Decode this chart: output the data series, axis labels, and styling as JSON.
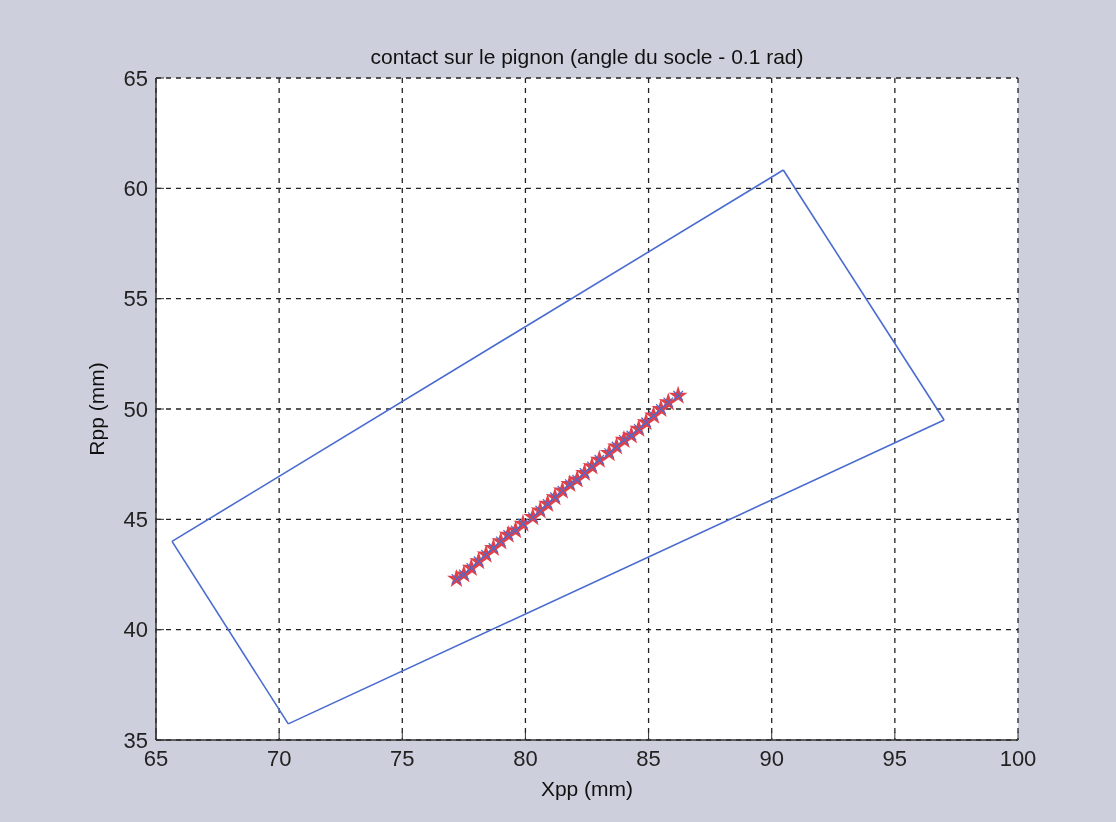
{
  "chart_data": {
    "type": "line",
    "title": "contact sur le pignon (angle du socle - 0.1 rad)",
    "xlabel": "Xpp (mm)",
    "ylabel": "Rpp (mm)",
    "xlim": [
      65,
      100
    ],
    "xticks": [
      65,
      70,
      75,
      80,
      85,
      90,
      95,
      100
    ],
    "ylim": [
      35,
      65
    ],
    "yticks": [
      35,
      40,
      45,
      50,
      55,
      60,
      65
    ],
    "grid": true,
    "line_style": "solid",
    "series": [
      {
        "color": "#4a6bd0",
        "x": [
          65.65,
          90.47
        ],
        "values": [
          44.0,
          60.83
        ]
      },
      {
        "color": "#4a6bd0",
        "x": [
          90.47,
          97.0
        ],
        "values": [
          60.83,
          49.5
        ]
      },
      {
        "color": "#4a6bd0",
        "x": [
          70.37,
          97.0
        ],
        "values": [
          35.73,
          49.5
        ]
      },
      {
        "color": "#4a6bd0",
        "x": [
          65.65,
          70.37
        ],
        "values": [
          44.0,
          35.73
        ]
      },
      {
        "type": "scatter",
        "color": "#e0404a",
        "marker": "star",
        "x": [
          77.2,
          77.5,
          77.8,
          78.1,
          78.4,
          78.7,
          79.0,
          79.3,
          79.6,
          79.9,
          80.3,
          80.6,
          80.9,
          81.2,
          81.5,
          81.8,
          82.1,
          82.4,
          82.7,
          83.0,
          83.4,
          83.7,
          84.0,
          84.3,
          84.6,
          84.9,
          85.2,
          85.5,
          85.8,
          86.2
        ],
        "values": [
          42.3,
          42.5,
          42.8,
          43.1,
          43.4,
          43.7,
          44.0,
          44.3,
          44.5,
          44.8,
          45.1,
          45.4,
          45.7,
          46.0,
          46.3,
          46.6,
          46.8,
          47.1,
          47.4,
          47.7,
          48.0,
          48.3,
          48.6,
          48.8,
          49.1,
          49.4,
          49.7,
          50.0,
          50.3,
          50.6
        ]
      },
      {
        "type": "scatter",
        "color": "#4a6bd0",
        "marker": "cross",
        "x": [
          77.2,
          77.5,
          77.8,
          78.1,
          78.4,
          78.7,
          79.0,
          79.3,
          79.6,
          79.9,
          80.3,
          80.6,
          80.9,
          81.2,
          81.5,
          81.8,
          82.1,
          82.4,
          82.7,
          83.0,
          83.4,
          83.7,
          84.0,
          84.3,
          84.6,
          84.9,
          85.2,
          85.5,
          85.8,
          86.2
        ],
        "values": [
          42.3,
          42.5,
          42.8,
          43.1,
          43.4,
          43.7,
          44.0,
          44.3,
          44.5,
          44.8,
          45.1,
          45.4,
          45.7,
          46.0,
          46.3,
          46.6,
          46.8,
          47.1,
          47.4,
          47.7,
          48.0,
          48.3,
          48.6,
          48.8,
          49.1,
          49.4,
          49.7,
          50.0,
          50.3,
          50.6
        ]
      }
    ]
  }
}
